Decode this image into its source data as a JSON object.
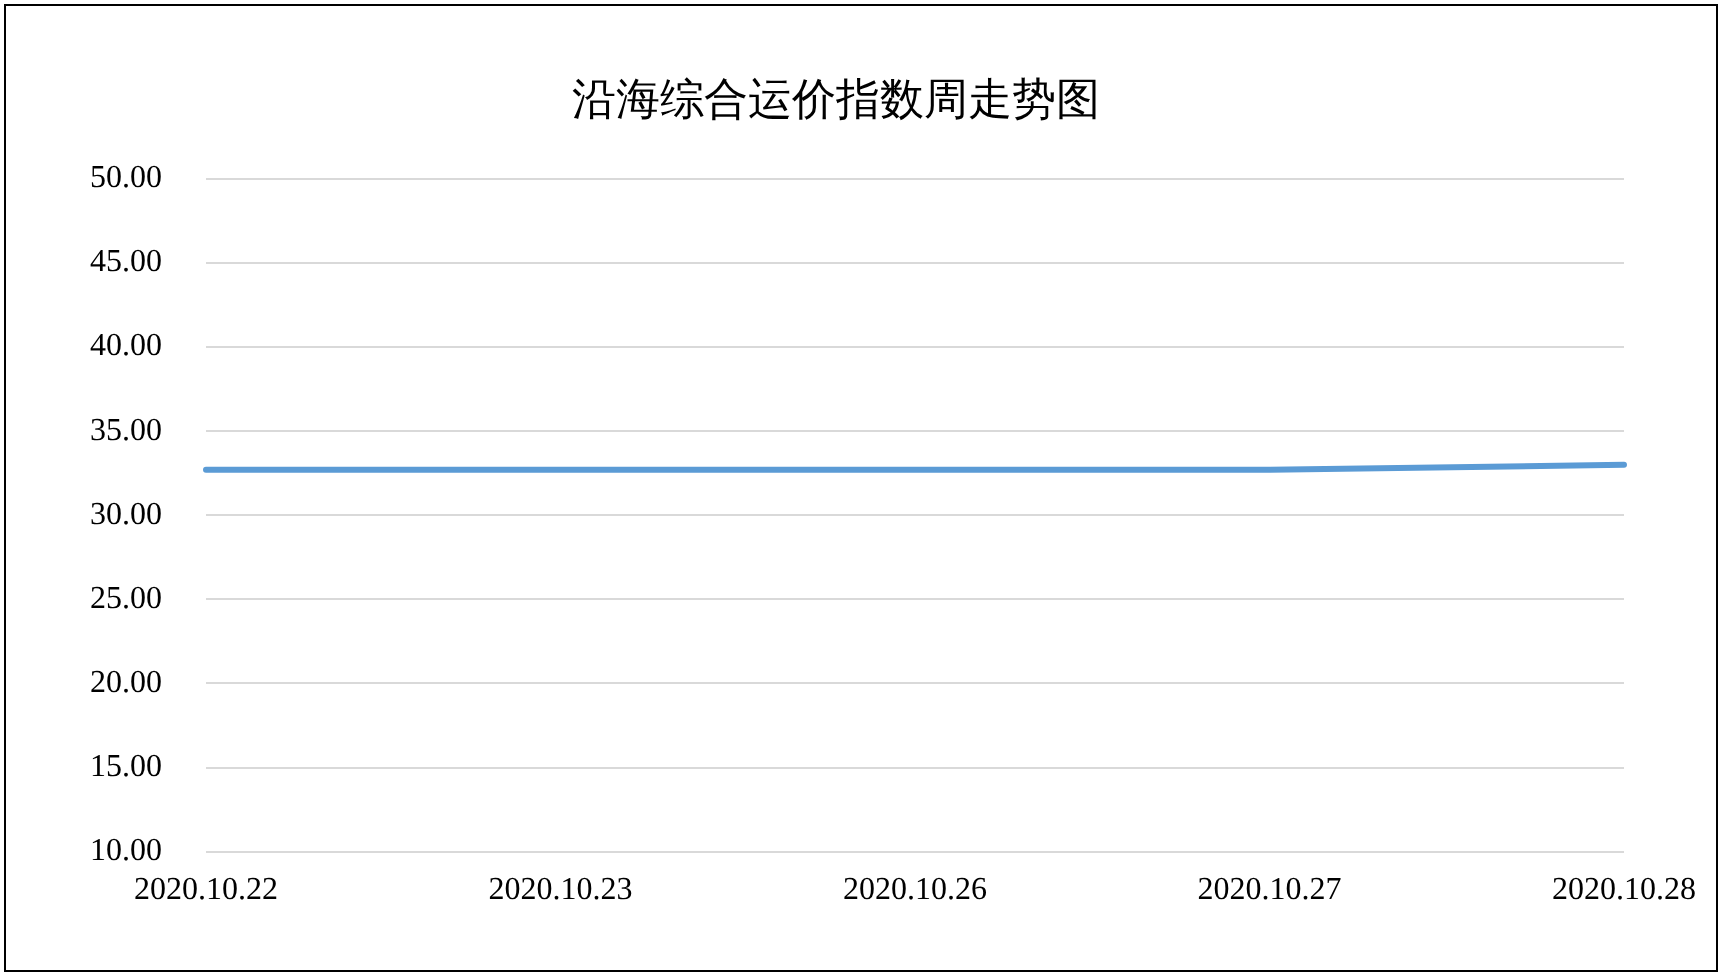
{
  "chart_data": {
    "type": "line",
    "title": "沿海综合运价指数周走势图",
    "categories": [
      "2020.10.22",
      "2020.10.23",
      "2020.10.26",
      "2020.10.27",
      "2020.10.28"
    ],
    "series": [
      {
        "color": "#5b9bd5",
        "values": [
          32.7,
          32.7,
          32.7,
          32.7,
          33.0
        ]
      }
    ],
    "ylim": [
      10,
      50
    ],
    "yticks": [
      {
        "value": 10,
        "label": "10.00"
      },
      {
        "value": 15,
        "label": "15.00"
      },
      {
        "value": 20,
        "label": "20.00"
      },
      {
        "value": 25,
        "label": "25.00"
      },
      {
        "value": 30,
        "label": "30.00"
      },
      {
        "value": 35,
        "label": "35.00"
      },
      {
        "value": 40,
        "label": "40.00"
      },
      {
        "value": 45,
        "label": "45.00"
      },
      {
        "value": 50,
        "label": "50.00"
      }
    ],
    "grid": "y",
    "legend": false,
    "marker": "none",
    "line_style": "solid"
  }
}
